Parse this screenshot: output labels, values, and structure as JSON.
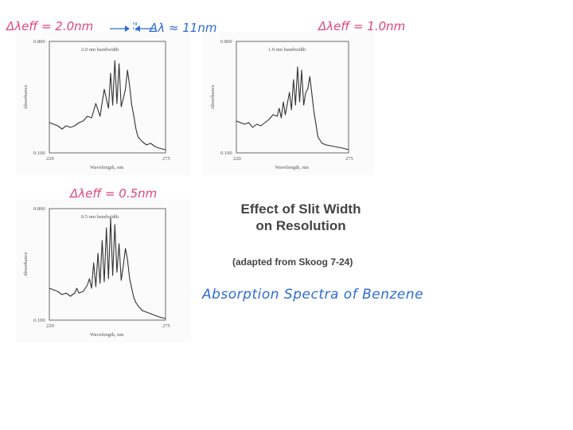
{
  "annotations": {
    "delta_eff_2": "Δλeff = 2.0nm",
    "delta_lambda": "Δλ ≈ 11nm",
    "delta_eff_1": "Δλeff = 1.0nm",
    "delta_eff_05": "Δλeff = 0.5nm"
  },
  "title": {
    "line1": "Effect of Slit Width",
    "line2": "on Resolution",
    "subtitle": "(adapted from Skoog 7-24)",
    "caption": "Absorption Spectra of Benzene"
  },
  "colors": {
    "annotation_red": "#e0457b",
    "annotation_blue": "#2e6bd6",
    "trace": "#333333"
  },
  "chart_data": [
    {
      "type": "line",
      "panel_label": "2.0 nm bandwidth",
      "xlabel": "Wavelength, nm",
      "ylabel": "Absorbance",
      "xlim": [
        220,
        275
      ],
      "ylim": [
        0.1,
        0.8
      ],
      "x_tick_labels": [
        "220",
        "275"
      ],
      "y_tick_labels": [
        "0.800",
        "0.100"
      ],
      "x": [
        220,
        222,
        224,
        226,
        228,
        230,
        232,
        234,
        236,
        238,
        240,
        242,
        244,
        246,
        248,
        249,
        250,
        251,
        252,
        253,
        254,
        255,
        256,
        257,
        258,
        259,
        260,
        261,
        262,
        264,
        266,
        268,
        270,
        272,
        275
      ],
      "y": [
        0.29,
        0.28,
        0.27,
        0.25,
        0.27,
        0.26,
        0.27,
        0.29,
        0.3,
        0.33,
        0.32,
        0.41,
        0.33,
        0.5,
        0.38,
        0.6,
        0.4,
        0.68,
        0.41,
        0.66,
        0.39,
        0.44,
        0.5,
        0.62,
        0.52,
        0.4,
        0.33,
        0.25,
        0.2,
        0.17,
        0.15,
        0.16,
        0.14,
        0.13,
        0.12
      ]
    },
    {
      "type": "line",
      "panel_label": "1.0 nm bandwidth",
      "xlabel": "Wavelength, nm",
      "ylabel": "Absorbance",
      "xlim": [
        220,
        275
      ],
      "ylim": [
        0.1,
        0.8
      ],
      "x_tick_labels": [
        "220",
        "275"
      ],
      "y_tick_labels": [
        "0.800",
        "0.100"
      ],
      "x": [
        220,
        222,
        224,
        226,
        228,
        230,
        232,
        234,
        236,
        238,
        240,
        241,
        242,
        243,
        244,
        246,
        247,
        248,
        249,
        250,
        251,
        252,
        253,
        254,
        255,
        256,
        257,
        258,
        259,
        260,
        262,
        264,
        268,
        272,
        275
      ],
      "y": [
        0.3,
        0.29,
        0.28,
        0.29,
        0.26,
        0.28,
        0.27,
        0.29,
        0.31,
        0.34,
        0.33,
        0.38,
        0.32,
        0.42,
        0.34,
        0.48,
        0.37,
        0.56,
        0.4,
        0.64,
        0.42,
        0.62,
        0.4,
        0.48,
        0.5,
        0.58,
        0.47,
        0.36,
        0.28,
        0.2,
        0.16,
        0.15,
        0.14,
        0.13,
        0.12
      ]
    },
    {
      "type": "line",
      "panel_label": "0.5 nm bandwidth",
      "xlabel": "Wavelength, nm",
      "ylabel": "Absorbance",
      "xlim": [
        220,
        275
      ],
      "ylim": [
        0.1,
        0.8
      ],
      "x_tick_labels": [
        "220",
        "275"
      ],
      "y_tick_labels": [
        "0.800",
        "0.100"
      ],
      "x": [
        220,
        222,
        224,
        226,
        228,
        230,
        232,
        233,
        234,
        236,
        238,
        239,
        240,
        241,
        242,
        243,
        244,
        245,
        246,
        247,
        248,
        249,
        250,
        251,
        252,
        253,
        254,
        255,
        256,
        257,
        258,
        259,
        260,
        261,
        262,
        264,
        266,
        268,
        270,
        272,
        275
      ],
      "y": [
        0.3,
        0.29,
        0.28,
        0.26,
        0.27,
        0.25,
        0.27,
        0.3,
        0.27,
        0.28,
        0.32,
        0.36,
        0.3,
        0.46,
        0.31,
        0.52,
        0.33,
        0.6,
        0.34,
        0.68,
        0.36,
        0.74,
        0.38,
        0.7,
        0.4,
        0.58,
        0.35,
        0.44,
        0.55,
        0.48,
        0.36,
        0.3,
        0.24,
        0.21,
        0.19,
        0.16,
        0.15,
        0.14,
        0.13,
        0.12,
        0.11
      ]
    }
  ]
}
